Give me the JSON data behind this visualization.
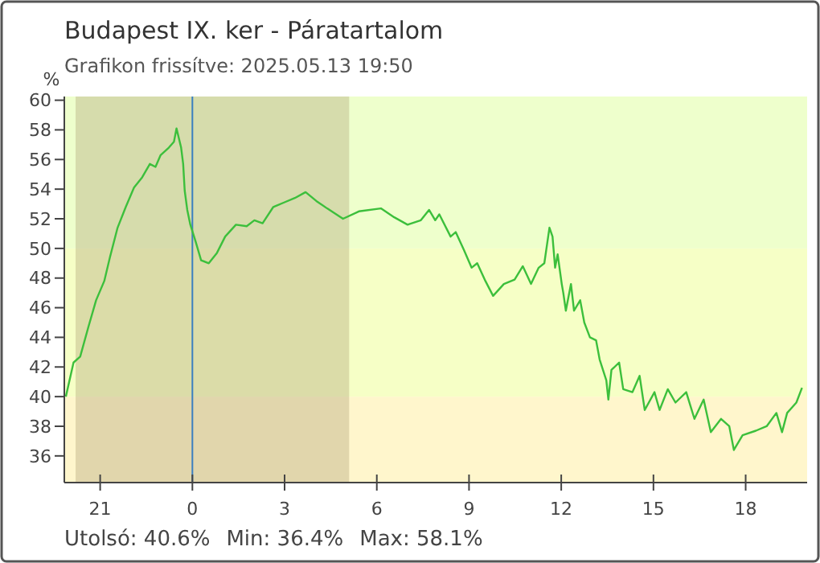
{
  "chart_data": {
    "type": "line",
    "title": "Budapest IX. ker - Páratartalom",
    "subtitle": "Grafikon frissítve: 2025.05.13 19:50",
    "ylabel": "%",
    "annotations": [
      "Utolsó: 40.6%",
      "Min: 36.4%",
      "Max: 58.1%"
    ],
    "xlim": [
      "2025-05-12T19:50",
      "2025-05-13T20:00"
    ],
    "ylim": [
      34.2,
      60.25
    ],
    "xticks": [
      {
        "value": "2025-05-12T21:00",
        "label": "21"
      },
      {
        "value": "2025-05-13T00:00",
        "label": "0"
      },
      {
        "value": "2025-05-13T03:00",
        "label": "3"
      },
      {
        "value": "2025-05-13T06:00",
        "label": "6"
      },
      {
        "value": "2025-05-13T09:00",
        "label": "9"
      },
      {
        "value": "2025-05-13T12:00",
        "label": "12"
      },
      {
        "value": "2025-05-13T15:00",
        "label": "15"
      },
      {
        "value": "2025-05-13T18:00",
        "label": "18"
      }
    ],
    "yticks": [
      36,
      38,
      40,
      42,
      44,
      46,
      48,
      50,
      52,
      54,
      56,
      58,
      60
    ],
    "bands": [
      {
        "axis": "y",
        "from": 34.2,
        "to": 40,
        "color": "#fff6cc"
      },
      {
        "axis": "y",
        "from": 40,
        "to": 50,
        "color": "#f6ffc6"
      },
      {
        "axis": "y",
        "from": 50,
        "to": 60.25,
        "color": "#eeffcc"
      },
      {
        "axis": "x",
        "from": "2025-05-12T20:12",
        "to": "2025-05-13T05:06",
        "color": "#a89c70"
      }
    ],
    "ref_lines": [
      {
        "axis": "x",
        "value": "2025-05-13T00:00",
        "color": "#3a7fc0"
      }
    ],
    "series": [
      {
        "color": "#3cbf3c",
        "x": [
          "2025-05-12T19:53",
          "2025-05-12T20:08",
          "2025-05-12T20:21",
          "2025-05-12T20:37",
          "2025-05-12T20:52",
          "2025-05-12T21:08",
          "2025-05-12T21:19",
          "2025-05-12T21:34",
          "2025-05-12T21:50",
          "2025-05-12T22:06",
          "2025-05-12T22:22",
          "2025-05-12T22:37",
          "2025-05-12T22:48",
          "2025-05-12T22:58",
          "2025-05-12T23:14",
          "2025-05-12T23:24",
          "2025-05-12T23:29",
          "2025-05-12T23:38",
          "2025-05-12T23:42",
          "2025-05-12T23:45",
          "2025-05-12T23:50",
          "2025-05-12T23:56",
          "2025-05-13T00:06",
          "2025-05-13T00:17",
          "2025-05-13T00:32",
          "2025-05-13T00:48",
          "2025-05-13T01:04",
          "2025-05-13T01:25",
          "2025-05-13T01:46",
          "2025-05-13T02:01",
          "2025-05-13T02:17",
          "2025-05-13T02:38",
          "2025-05-13T02:59",
          "2025-05-13T03:20",
          "2025-05-13T03:41",
          "2025-05-13T04:02",
          "2025-05-13T04:23",
          "2025-05-13T04:54",
          "2025-05-13T05:25",
          "2025-05-13T06:08",
          "2025-05-13T06:34",
          "2025-05-13T07:00",
          "2025-05-13T07:26",
          "2025-05-13T07:42",
          "2025-05-13T07:54",
          "2025-05-13T08:02",
          "2025-05-13T08:24",
          "2025-05-13T08:34",
          "2025-05-13T08:50",
          "2025-05-13T09:05",
          "2025-05-13T09:16",
          "2025-05-13T09:32",
          "2025-05-13T09:47",
          "2025-05-13T10:08",
          "2025-05-13T10:29",
          "2025-05-13T10:45",
          "2025-05-13T11:01",
          "2025-05-13T11:16",
          "2025-05-13T11:27",
          "2025-05-13T11:37",
          "2025-05-13T11:43",
          "2025-05-13T11:48",
          "2025-05-13T11:53",
          "2025-05-13T12:01",
          "2025-05-13T12:04",
          "2025-05-13T12:09",
          "2025-05-13T12:19",
          "2025-05-13T12:25",
          "2025-05-13T12:37",
          "2025-05-13T12:45",
          "2025-05-13T12:56",
          "2025-05-13T13:08",
          "2025-05-13T13:15",
          "2025-05-13T13:28",
          "2025-05-13T13:32",
          "2025-05-13T13:38",
          "2025-05-13T13:53",
          "2025-05-13T14:01",
          "2025-05-13T14:19",
          "2025-05-13T14:33",
          "2025-05-13T14:43",
          "2025-05-13T15:02",
          "2025-05-13T15:12",
          "2025-05-13T15:28",
          "2025-05-13T15:43",
          "2025-05-13T16:04",
          "2025-05-13T16:20",
          "2025-05-13T16:38",
          "2025-05-13T16:52",
          "2025-05-13T17:12",
          "2025-05-13T17:28",
          "2025-05-13T17:37",
          "2025-05-13T17:54",
          "2025-05-13T18:20",
          "2025-05-13T18:41",
          "2025-05-13T19:00",
          "2025-05-13T19:11",
          "2025-05-13T19:21",
          "2025-05-13T19:39",
          "2025-05-13T19:50"
        ],
        "values": [
          40.0,
          42.3,
          42.7,
          44.7,
          46.5,
          47.8,
          49.4,
          51.4,
          52.8,
          54.1,
          54.8,
          55.7,
          55.5,
          56.3,
          56.8,
          57.2,
          58.1,
          56.8,
          55.7,
          53.9,
          52.6,
          51.6,
          50.5,
          49.2,
          49.0,
          49.7,
          50.8,
          51.6,
          51.5,
          51.9,
          51.7,
          52.8,
          53.1,
          53.4,
          53.8,
          53.2,
          52.7,
          52.0,
          52.5,
          52.7,
          52.1,
          51.6,
          51.9,
          52.6,
          51.9,
          52.3,
          50.8,
          51.1,
          49.9,
          48.7,
          49.0,
          47.8,
          46.8,
          47.6,
          47.9,
          48.8,
          47.6,
          48.7,
          49.0,
          51.4,
          50.8,
          48.7,
          49.6,
          47.6,
          47.0,
          45.8,
          47.6,
          45.8,
          46.5,
          45.0,
          44.0,
          43.8,
          42.5,
          41.1,
          39.8,
          41.8,
          42.3,
          40.5,
          40.3,
          41.4,
          39.1,
          40.3,
          39.1,
          40.5,
          39.6,
          40.3,
          38.5,
          39.8,
          37.6,
          38.5,
          38.0,
          36.4,
          37.4,
          37.7,
          38.0,
          38.9,
          37.6,
          38.9,
          39.6,
          40.6
        ]
      }
    ]
  }
}
